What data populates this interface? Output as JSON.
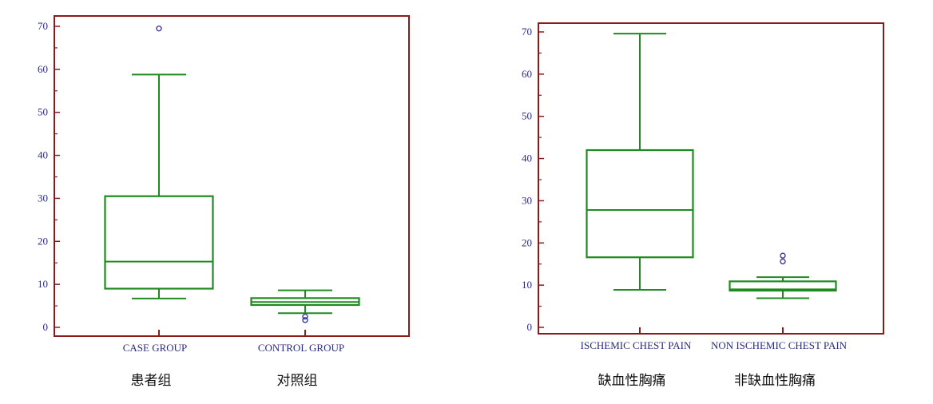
{
  "chart_data": [
    {
      "type": "boxplot",
      "ylim": [
        0,
        70
      ],
      "yticks": [
        0,
        10,
        20,
        30,
        40,
        50,
        60,
        70
      ],
      "categories": [
        "CASE GROUP",
        "CONTROL GROUP"
      ],
      "category_labels_cn": [
        "患者组",
        "对照组"
      ],
      "boxes": [
        {
          "min": 6.7,
          "q1": 9.0,
          "median": 15.3,
          "q3": 30.5,
          "max": 58.8,
          "outliers": [
            69.5
          ]
        },
        {
          "min": 3.3,
          "q1": 5.2,
          "median": 5.9,
          "q3": 6.8,
          "max": 8.6,
          "outliers": [
            2.5,
            1.7
          ]
        }
      ]
    },
    {
      "type": "boxplot",
      "ylim": [
        0,
        70
      ],
      "yticks": [
        0,
        10,
        20,
        30,
        40,
        50,
        60,
        70
      ],
      "categories": [
        "ISCHEMIC CHEST PAIN",
        "NON ISCHEMIC CHEST PAIN"
      ],
      "category_labels_cn": [
        "缺血性胸痛",
        "非缺血性胸痛"
      ],
      "boxes": [
        {
          "min": 8.9,
          "q1": 16.6,
          "median": 27.8,
          "q3": 42.0,
          "max": 69.6,
          "outliers": []
        },
        {
          "min": 6.9,
          "q1": 8.7,
          "median": 9.0,
          "q3": 10.9,
          "max": 11.9,
          "outliers": [
            15.6,
            17.0
          ]
        }
      ]
    }
  ],
  "colors": {
    "frame": "#8b1a1a",
    "box": "#1f8a1f",
    "text": "#2b2b80",
    "outlier": "#3a3a9a"
  }
}
